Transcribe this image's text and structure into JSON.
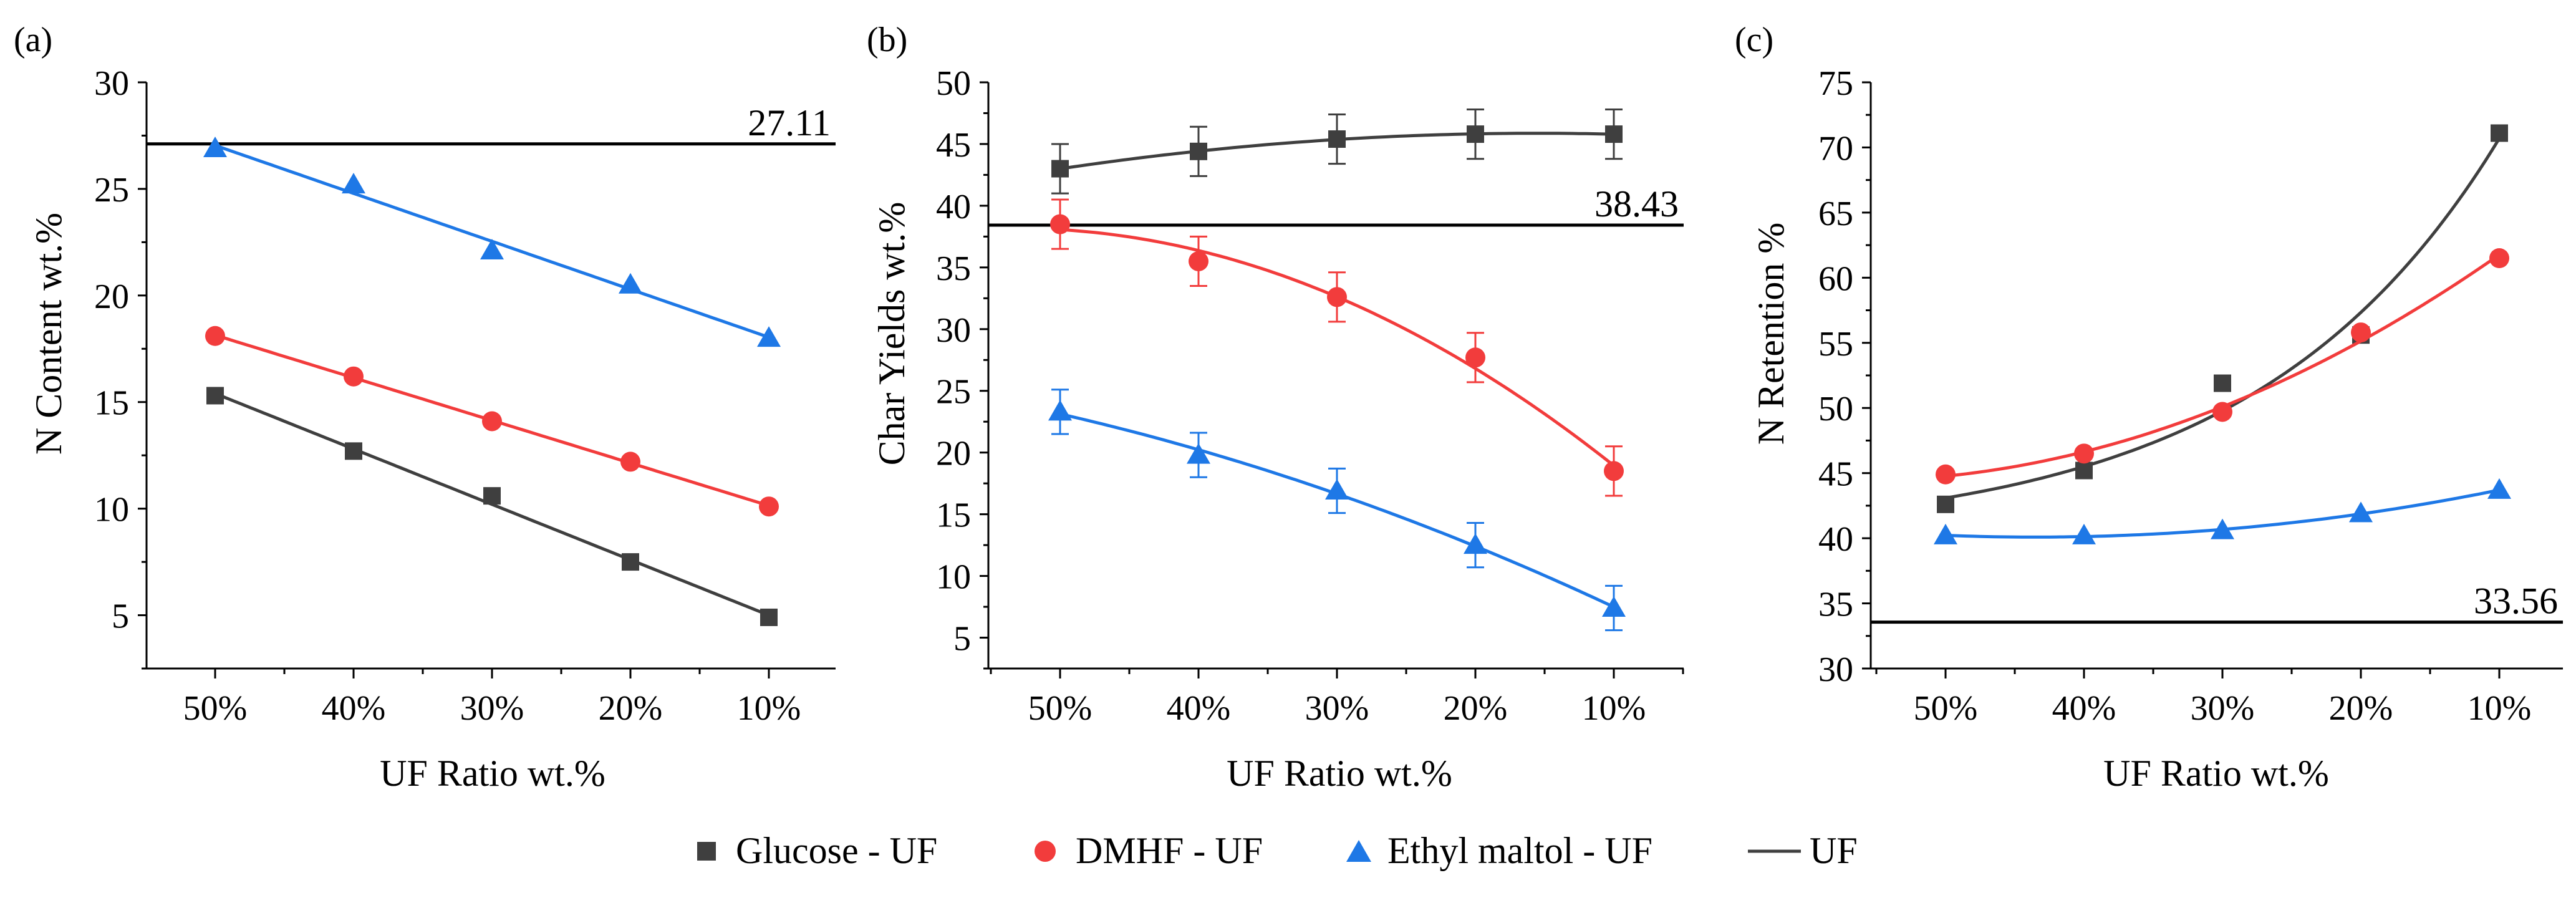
{
  "colors": {
    "glucose": "#3f3f3f",
    "dmhf": "#f23c3c",
    "ethyl": "#1e78e6",
    "uf": "#000000"
  },
  "legend": {
    "glucose": "Glucose - UF",
    "dmhf": "DMHF - UF",
    "ethyl": "Ethyl maltol - UF",
    "uf": "UF"
  },
  "chart_data": [
    {
      "panel": "(a)",
      "type": "line",
      "xlabel": "UF Ratio  wt.%",
      "ylabel": "N Content  wt.%",
      "categories": [
        "50%",
        "40%",
        "30%",
        "20%",
        "10%"
      ],
      "ylim": [
        2.5,
        30
      ],
      "yticks": [
        5,
        10,
        15,
        20,
        25,
        30
      ],
      "reference": {
        "value": 27.11,
        "label": "27.11"
      },
      "series": [
        {
          "key": "glucose",
          "name": "Glucose - UF",
          "marker": "square",
          "values": [
            15.3,
            12.7,
            10.6,
            7.5,
            4.9
          ],
          "fit": "linear"
        },
        {
          "key": "dmhf",
          "name": "DMHF - UF",
          "marker": "circle",
          "values": [
            18.1,
            16.2,
            14.1,
            12.2,
            10.1
          ],
          "fit": "linear"
        },
        {
          "key": "ethyl",
          "name": "Ethyl maltol - UF",
          "marker": "triangle",
          "values": [
            26.9,
            25.2,
            22.1,
            20.5,
            18.0
          ],
          "fit": "linear"
        }
      ]
    },
    {
      "panel": "(b)",
      "type": "line",
      "xlabel": "UF Ratio  wt.%",
      "ylabel": "Char Yields  wt.%",
      "categories": [
        "50%",
        "40%",
        "30%",
        "20%",
        "10%"
      ],
      "ylim": [
        2.5,
        50
      ],
      "yticks": [
        5,
        10,
        15,
        20,
        25,
        30,
        35,
        40,
        45,
        50
      ],
      "reference": {
        "value": 38.43,
        "label": "38.43"
      },
      "series": [
        {
          "key": "glucose",
          "name": "Glucose - UF",
          "marker": "square",
          "values": [
            43.0,
            44.4,
            45.4,
            45.8,
            45.8
          ],
          "errors": [
            2.0,
            2.0,
            2.0,
            2.0,
            2.0
          ],
          "fit": "quadratic"
        },
        {
          "key": "dmhf",
          "name": "DMHF - UF",
          "marker": "circle",
          "values": [
            38.5,
            35.5,
            32.6,
            27.7,
            18.5
          ],
          "errors": [
            2.0,
            2.0,
            2.0,
            2.0,
            2.0
          ],
          "fit": "quadratic"
        },
        {
          "key": "ethyl",
          "name": "Ethyl maltol - UF",
          "marker": "triangle",
          "values": [
            23.3,
            19.8,
            16.9,
            12.5,
            7.4
          ],
          "errors": [
            1.8,
            1.8,
            1.8,
            1.8,
            1.8
          ],
          "fit": "quadratic"
        }
      ]
    },
    {
      "panel": "(c)",
      "type": "line",
      "xlabel": "UF Ratio  wt.%",
      "ylabel": "N Retention  %",
      "categories": [
        "50%",
        "40%",
        "30%",
        "20%",
        "10%"
      ],
      "ylim": [
        30,
        75
      ],
      "yticks": [
        30,
        35,
        40,
        45,
        50,
        55,
        60,
        65,
        70,
        75
      ],
      "reference": {
        "value": 33.56,
        "label": "33.56"
      },
      "series": [
        {
          "key": "glucose",
          "name": "Glucose - UF",
          "marker": "square",
          "values": [
            42.6,
            45.2,
            51.9,
            55.6,
            71.1
          ],
          "fit": "exponential"
        },
        {
          "key": "dmhf",
          "name": "DMHF - UF",
          "marker": "circle",
          "values": [
            44.9,
            46.5,
            49.7,
            55.8,
            61.5
          ],
          "fit": "quadratic"
        },
        {
          "key": "ethyl",
          "name": "Ethyl maltol - UF",
          "marker": "triangle",
          "values": [
            40.2,
            40.2,
            40.6,
            41.9,
            43.7
          ],
          "fit": "quadratic"
        }
      ]
    }
  ]
}
